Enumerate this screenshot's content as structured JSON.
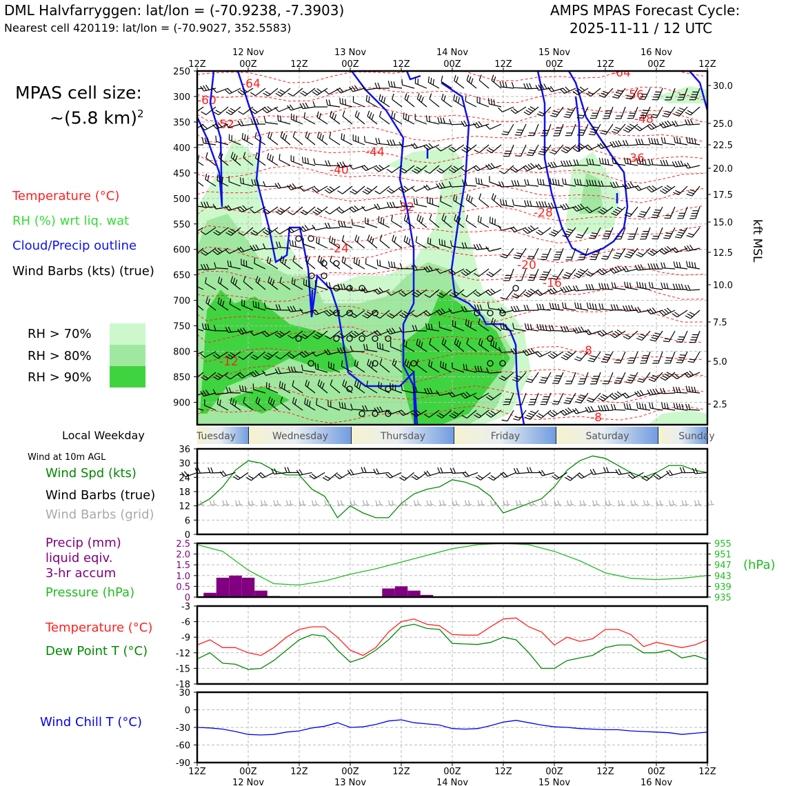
{
  "header": {
    "title_left": "DML Halvfarryggen: lat/lon = (-70.9238, -7.3903)",
    "subtitle_left": "Nearest cell 420119: lat/lon = (-70.9027, 352.5583)",
    "title_right_1": "AMPS MPAS Forecast Cycle:",
    "title_right_2": "2025-11-11 / 12 UTC"
  },
  "cell_size": {
    "line1": "MPAS cell size:",
    "line2": "~(5.8 km)",
    "sup": "2"
  },
  "legend_upper": {
    "temperature": "Temperature (°C)",
    "rh": "RH (%) wrt liq. wat",
    "cloud": "Cloud/Precip outline",
    "wind": "Wind Barbs (kts) (true)"
  },
  "rh_legend": {
    "items": [
      {
        "label": "RH > 70%",
        "color": "#ccf8cc"
      },
      {
        "label": "RH > 80%",
        "color": "#a0e8a0"
      },
      {
        "label": "RH > 90%",
        "color": "#3fd43f"
      }
    ]
  },
  "colors": {
    "temperature": "#ff2020",
    "rh": "#33cc33",
    "cloud": "#1010ee",
    "precip": "#800080",
    "pressure": "#22bb22",
    "dewpoint": "#008800",
    "windchill": "#0000ee",
    "wind_speed": "#008800",
    "grid_barbs": "#aaaaaa"
  },
  "time_axis": {
    "top_ticks": [
      "12Z",
      "00Z",
      "12Z",
      "00Z",
      "12Z",
      "00Z",
      "12Z",
      "00Z",
      "12Z",
      "00Z",
      "12Z"
    ],
    "date_labels": [
      "12 Nov",
      "13 Nov",
      "14 Nov",
      "15 Nov",
      "16 Nov"
    ],
    "bottom_ticks": [
      "12Z",
      "00Z",
      "12Z",
      "00Z",
      "12Z",
      "00Z",
      "12Z",
      "00Z",
      "12Z",
      "00Z",
      "12Z"
    ]
  },
  "weekday_bar": {
    "label": "Local Weekday",
    "days": [
      "Tuesday",
      "Wednesday",
      "Thursday",
      "Friday",
      "Saturday",
      "Sunday"
    ]
  },
  "wind_panel_labels": {
    "header": "Wind at 10m AGL",
    "speed": "Wind Spd (kts)",
    "barbs_true": "Wind Barbs (true)",
    "barbs_grid": "Wind Barbs (grid)"
  },
  "precip_panel_labels": {
    "l1": "Precip (mm)",
    "l2": "liquid eqiv.",
    "l3": "3-hr accum",
    "l4": "Pressure (hPa)",
    "unit": "(hPa)"
  },
  "temp_panel_labels": {
    "temp": "Temperature (°C)",
    "dew": "Dew Point T (°C)"
  },
  "windchill_panel_labels": {
    "wc": "Wind Chill T (°C)"
  },
  "chart_data": [
    {
      "type": "heatmap",
      "name": "vertical cross-section",
      "y_axis": {
        "unit": "hPa",
        "ticks": [
          250,
          300,
          350,
          400,
          450,
          500,
          550,
          600,
          650,
          700,
          750,
          800,
          850,
          900
        ],
        "range": [
          944,
          250
        ]
      },
      "y2_axis": {
        "label": "kft MSL",
        "ticks": [
          "30.0",
          "25.0",
          "22.5",
          "20.0",
          "17.5",
          "15.0",
          "12.5",
          "10.0",
          "7.5",
          "5.0",
          "2.5"
        ]
      },
      "temperature_contour_labels": [
        "-64",
        "-60",
        "-52",
        "-44",
        "-40",
        "-32",
        "-28",
        "-24",
        "-20",
        "-16",
        "-12",
        "-8",
        "-8",
        "-56",
        "-48",
        "-36",
        "-64"
      ],
      "rh_thresholds": [
        70,
        80,
        90
      ],
      "grid": true
    },
    {
      "type": "line",
      "name": "wind at 10m",
      "x_hours": [
        0,
        3,
        6,
        9,
        12,
        15,
        18,
        21,
        24,
        27,
        30,
        33,
        36,
        39,
        42,
        45,
        48,
        51,
        54,
        57,
        60,
        63,
        66,
        69,
        72,
        75,
        78,
        81,
        84,
        87,
        90,
        93,
        96,
        99,
        102,
        105,
        108,
        111,
        114,
        117,
        120
      ],
      "series": [
        {
          "name": "Wind Spd (kts)",
          "values": [
            12,
            15,
            20,
            27,
            31,
            30,
            27,
            25,
            25,
            19,
            16,
            7,
            12,
            9,
            7,
            7,
            13,
            17,
            19,
            20,
            23,
            22,
            20,
            16,
            9,
            11,
            13,
            15,
            20,
            27,
            31,
            33,
            32,
            29,
            26,
            24,
            26,
            29,
            29,
            27,
            26
          ]
        }
      ],
      "ylim": [
        0,
        36
      ],
      "yticks": [
        0,
        6,
        12,
        18,
        24,
        30,
        36
      ]
    },
    {
      "type": "bar",
      "name": "precip 3-hr accum",
      "x_hours": [
        3,
        6,
        9,
        12,
        15,
        18,
        45,
        48,
        51,
        54
      ],
      "values": [
        0.2,
        0.9,
        1.0,
        0.9,
        0.3,
        0.05,
        0.4,
        0.5,
        0.3,
        0.1
      ],
      "ylim": [
        0,
        2.5
      ],
      "yticks": [
        "0",
        "0.5",
        "1.0",
        "1.5",
        "2.0",
        "2.5"
      ]
    },
    {
      "type": "line",
      "name": "pressure",
      "x_hours": [
        0,
        6,
        12,
        18,
        24,
        30,
        36,
        42,
        48,
        54,
        60,
        66,
        72,
        78,
        84,
        90,
        96,
        102,
        108,
        114,
        120
      ],
      "series": [
        {
          "name": "Pressure (hPa)",
          "values": [
            954.5,
            952,
            945,
            940,
            939.5,
            941,
            943.5,
            945.5,
            948,
            950.5,
            953,
            954.5,
            955,
            954.5,
            952,
            948.5,
            944,
            942,
            941.5,
            942,
            943
          ]
        }
      ],
      "ylim": [
        935,
        955
      ],
      "yticks": [
        "935",
        "939",
        "943",
        "947",
        "951",
        "955"
      ]
    },
    {
      "type": "line",
      "name": "temperature and dew point",
      "x_hours": [
        0,
        3,
        6,
        9,
        12,
        15,
        18,
        21,
        24,
        27,
        30,
        33,
        36,
        39,
        42,
        45,
        48,
        51,
        54,
        57,
        60,
        63,
        66,
        69,
        72,
        75,
        78,
        81,
        84,
        87,
        90,
        93,
        96,
        99,
        102,
        105,
        108,
        111,
        114,
        117,
        120
      ],
      "series": [
        {
          "name": "Temperature (°C)",
          "values": [
            -10.5,
            -9.5,
            -11,
            -11,
            -12,
            -12.5,
            -11,
            -9,
            -7.5,
            -7,
            -7,
            -9,
            -11.5,
            -12.5,
            -11,
            -8,
            -6,
            -5.5,
            -6.5,
            -6.8,
            -8.5,
            -8.6,
            -8.6,
            -7,
            -5.5,
            -5.3,
            -7,
            -8,
            -10.5,
            -9,
            -9.8,
            -9.3,
            -7.5,
            -7.5,
            -8.5,
            -10.8,
            -10,
            -10.5,
            -11,
            -10.5,
            -9.5
          ]
        },
        {
          "name": "Dew Point T (°C)",
          "values": [
            -13.2,
            -12,
            -14,
            -14.2,
            -15.2,
            -15,
            -13.5,
            -11.5,
            -9.5,
            -8.5,
            -8.8,
            -11.5,
            -13.8,
            -13,
            -11.5,
            -9.5,
            -7,
            -6.5,
            -7.3,
            -7.5,
            -10.2,
            -10.3,
            -10.4,
            -10,
            -9,
            -9.5,
            -12,
            -15,
            -15,
            -13.5,
            -13,
            -12.5,
            -11,
            -10.5,
            -10.5,
            -12,
            -12,
            -11.5,
            -13,
            -12.5,
            -13.3
          ]
        }
      ],
      "ylim": [
        -18,
        -3
      ],
      "yticks": [
        "-3",
        "-6",
        "-9",
        "-12",
        "-15",
        "-18"
      ]
    },
    {
      "type": "line",
      "name": "wind chill",
      "x_hours": [
        0,
        3,
        6,
        9,
        12,
        15,
        18,
        21,
        24,
        27,
        30,
        33,
        36,
        39,
        42,
        45,
        48,
        51,
        54,
        57,
        60,
        63,
        66,
        69,
        72,
        75,
        78,
        81,
        84,
        87,
        90,
        93,
        96,
        99,
        102,
        105,
        108,
        111,
        114,
        117,
        120
      ],
      "series": [
        {
          "name": "Wind Chill T (°C)",
          "values": [
            -30,
            -31,
            -33,
            -37,
            -42,
            -43,
            -42,
            -38,
            -36,
            -31,
            -28,
            -22,
            -30,
            -29,
            -25,
            -19,
            -17,
            -22,
            -24,
            -26,
            -32,
            -33,
            -32,
            -27,
            -21,
            -18,
            -22,
            -26,
            -29,
            -30,
            -32,
            -33,
            -34,
            -34,
            -36,
            -37,
            -38,
            -39,
            -42,
            -40,
            -38
          ]
        }
      ],
      "ylim": [
        -90,
        30
      ],
      "yticks": [
        "30",
        "0",
        "-30",
        "-60",
        "-90"
      ]
    }
  ]
}
